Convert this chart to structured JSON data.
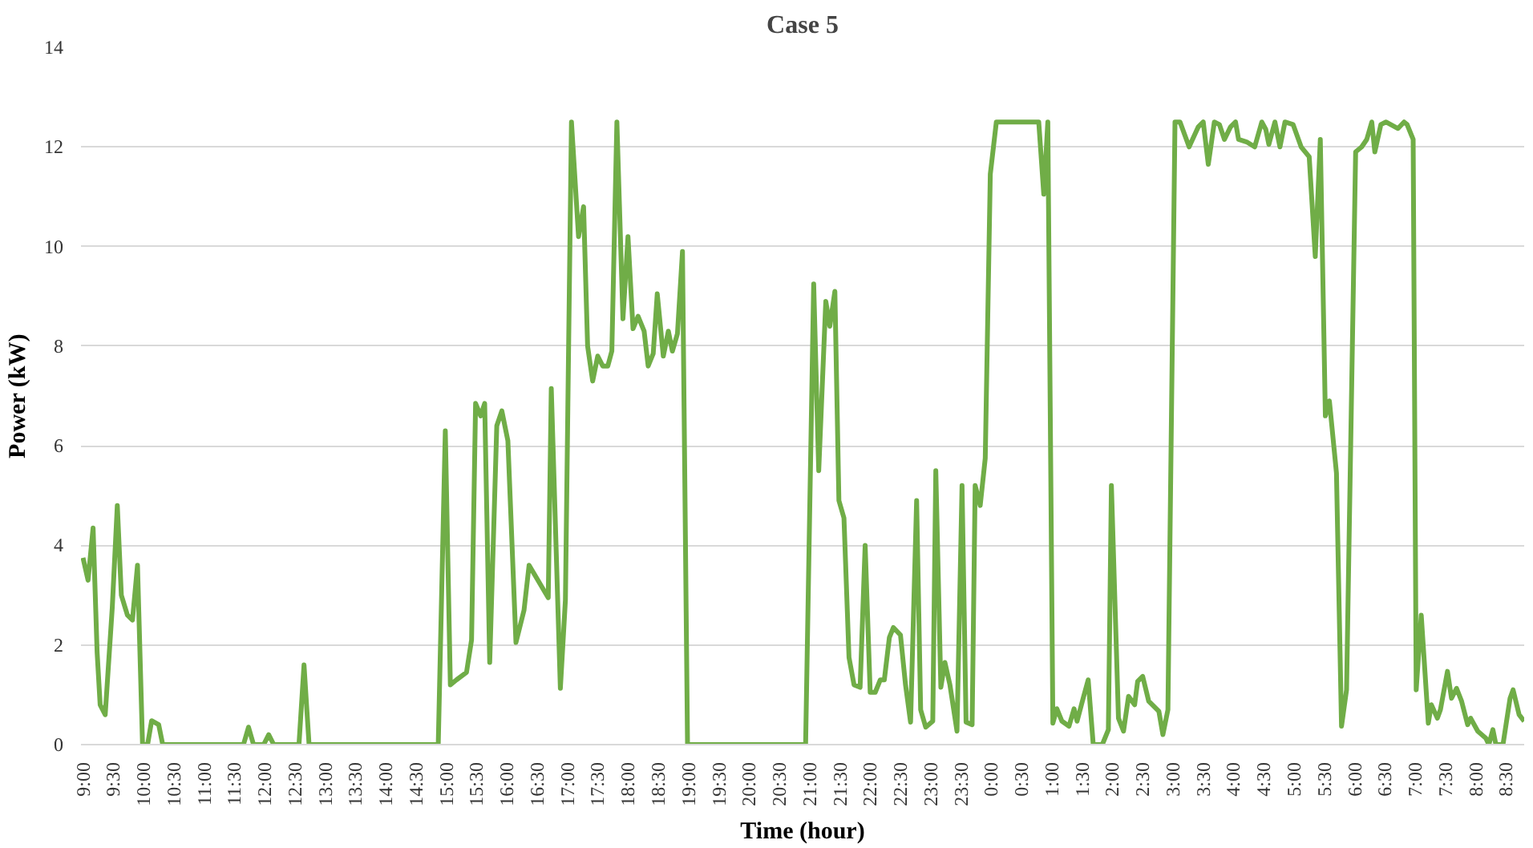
{
  "chart_data": {
    "type": "line",
    "title": "Case 5",
    "xlabel": "Time (hour)",
    "ylabel": "Power (kW)",
    "xlim": [
      "2000-01-01T08:58",
      "2000-01-02T08:48"
    ],
    "ylim": [
      0,
      14
    ],
    "yticks": [
      0,
      2,
      4,
      6,
      8,
      10,
      12,
      14
    ],
    "xticks": [
      {
        "value": "2000-01-01T09:00",
        "label": "9:00"
      },
      {
        "value": "2000-01-01T09:30",
        "label": "9:30"
      },
      {
        "value": "2000-01-01T10:00",
        "label": "10:00"
      },
      {
        "value": "2000-01-01T10:30",
        "label": "10:30"
      },
      {
        "value": "2000-01-01T11:00",
        "label": "11:00"
      },
      {
        "value": "2000-01-01T11:30",
        "label": "11:30"
      },
      {
        "value": "2000-01-01T12:00",
        "label": "12:00"
      },
      {
        "value": "2000-01-01T12:30",
        "label": "12:30"
      },
      {
        "value": "2000-01-01T13:00",
        "label": "13:00"
      },
      {
        "value": "2000-01-01T13:30",
        "label": "13:30"
      },
      {
        "value": "2000-01-01T14:00",
        "label": "14:00"
      },
      {
        "value": "2000-01-01T14:30",
        "label": "14:30"
      },
      {
        "value": "2000-01-01T15:00",
        "label": "15:00"
      },
      {
        "value": "2000-01-01T15:30",
        "label": "15:30"
      },
      {
        "value": "2000-01-01T16:00",
        "label": "16:00"
      },
      {
        "value": "2000-01-01T16:30",
        "label": "16:30"
      },
      {
        "value": "2000-01-01T17:00",
        "label": "17:00"
      },
      {
        "value": "2000-01-01T17:30",
        "label": "17:30"
      },
      {
        "value": "2000-01-01T18:00",
        "label": "18:00"
      },
      {
        "value": "2000-01-01T18:30",
        "label": "18:30"
      },
      {
        "value": "2000-01-01T19:00",
        "label": "19:00"
      },
      {
        "value": "2000-01-01T19:30",
        "label": "19:30"
      },
      {
        "value": "2000-01-01T20:00",
        "label": "20:00"
      },
      {
        "value": "2000-01-01T20:30",
        "label": "20:30"
      },
      {
        "value": "2000-01-01T21:00",
        "label": "21:00"
      },
      {
        "value": "2000-01-01T21:30",
        "label": "21:30"
      },
      {
        "value": "2000-01-01T22:00",
        "label": "22:00"
      },
      {
        "value": "2000-01-01T22:30",
        "label": "22:30"
      },
      {
        "value": "2000-01-01T23:00",
        "label": "23:00"
      },
      {
        "value": "2000-01-01T23:30",
        "label": "23:30"
      },
      {
        "value": "2000-01-02T00:00",
        "label": "0:00"
      },
      {
        "value": "2000-01-02T00:30",
        "label": "0:30"
      },
      {
        "value": "2000-01-02T01:00",
        "label": "1:00"
      },
      {
        "value": "2000-01-02T01:30",
        "label": "1:30"
      },
      {
        "value": "2000-01-02T02:00",
        "label": "2:00"
      },
      {
        "value": "2000-01-02T02:30",
        "label": "2:30"
      },
      {
        "value": "2000-01-02T03:00",
        "label": "3:00"
      },
      {
        "value": "2000-01-02T03:30",
        "label": "3:30"
      },
      {
        "value": "2000-01-02T04:00",
        "label": "4:00"
      },
      {
        "value": "2000-01-02T04:30",
        "label": "4:30"
      },
      {
        "value": "2000-01-02T05:00",
        "label": "5:00"
      },
      {
        "value": "2000-01-02T05:30",
        "label": "5:30"
      },
      {
        "value": "2000-01-02T06:00",
        "label": "6:00"
      },
      {
        "value": "2000-01-02T06:30",
        "label": "6:30"
      },
      {
        "value": "2000-01-02T07:00",
        "label": "7:00"
      },
      {
        "value": "2000-01-02T07:30",
        "label": "7:30"
      },
      {
        "value": "2000-01-02T08:00",
        "label": "8:00"
      },
      {
        "value": "2000-01-02T08:30",
        "label": "8:30"
      }
    ],
    "grid": "y",
    "marker": "none",
    "line_style": "solid",
    "series": [
      {
        "color": "#70ad47",
        "x": [
          "2000-01-01T09:00",
          "2000-01-01T09:05",
          "2000-01-01T09:10",
          "2000-01-01T09:14",
          "2000-01-01T09:17",
          "2000-01-01T09:22",
          "2000-01-01T09:29",
          "2000-01-01T09:34",
          "2000-01-01T09:38",
          "2000-01-01T09:44",
          "2000-01-01T09:49",
          "2000-01-01T09:54",
          "2000-01-01T09:59",
          "2000-01-01T10:04",
          "2000-01-01T10:08",
          "2000-01-01T10:15",
          "2000-01-01T10:19",
          "2000-01-01T11:39",
          "2000-01-01T11:44",
          "2000-01-01T11:49",
          "2000-01-01T11:59",
          "2000-01-01T12:04",
          "2000-01-01T12:09",
          "2000-01-01T12:34",
          "2000-01-01T12:39",
          "2000-01-01T12:44",
          "2000-01-01T14:52",
          "2000-01-01T14:59",
          "2000-01-01T15:04",
          "2000-01-01T15:10",
          "2000-01-01T15:20",
          "2000-01-01T15:25",
          "2000-01-01T15:29",
          "2000-01-01T15:34",
          "2000-01-01T15:38",
          "2000-01-01T15:43",
          "2000-01-01T15:50",
          "2000-01-01T15:55",
          "2000-01-01T16:01",
          "2000-01-01T16:09",
          "2000-01-01T16:17",
          "2000-01-01T16:22",
          "2000-01-01T16:41",
          "2000-01-01T16:44",
          "2000-01-01T16:53",
          "2000-01-01T16:58",
          "2000-01-01T17:04",
          "2000-01-01T17:11",
          "2000-01-01T17:16",
          "2000-01-01T17:20",
          "2000-01-01T17:25",
          "2000-01-01T17:30",
          "2000-01-01T17:35",
          "2000-01-01T17:40",
          "2000-01-01T17:44",
          "2000-01-01T17:49",
          "2000-01-01T17:55",
          "2000-01-01T18:00",
          "2000-01-01T18:05",
          "2000-01-01T18:10",
          "2000-01-01T18:16",
          "2000-01-01T18:20",
          "2000-01-01T18:25",
          "2000-01-01T18:29",
          "2000-01-01T18:35",
          "2000-01-01T18:40",
          "2000-01-01T18:44",
          "2000-01-01T18:49",
          "2000-01-01T18:54",
          "2000-01-01T18:59",
          "2000-01-01T20:56",
          "2000-01-01T21:04",
          "2000-01-01T21:09",
          "2000-01-01T21:16",
          "2000-01-01T21:20",
          "2000-01-01T21:25",
          "2000-01-01T21:29",
          "2000-01-01T21:34",
          "2000-01-01T21:39",
          "2000-01-01T21:44",
          "2000-01-01T21:50",
          "2000-01-01T21:55",
          "2000-01-01T22:00",
          "2000-01-01T22:05",
          "2000-01-01T22:10",
          "2000-01-01T22:14",
          "2000-01-01T22:19",
          "2000-01-01T22:23",
          "2000-01-01T22:30",
          "2000-01-01T22:35",
          "2000-01-01T22:40",
          "2000-01-01T22:46",
          "2000-01-01T22:50",
          "2000-01-01T22:55",
          "2000-01-01T23:02",
          "2000-01-01T23:05",
          "2000-01-01T23:10",
          "2000-01-01T23:14",
          "2000-01-01T23:19",
          "2000-01-01T23:26",
          "2000-01-01T23:31",
          "2000-01-01T23:35",
          "2000-01-01T23:41",
          "2000-01-01T23:44",
          "2000-01-01T23:49",
          "2000-01-01T23:54",
          "2000-01-01T23:59",
          "2000-01-02T00:05",
          "2000-01-02T00:47",
          "2000-01-02T00:52",
          "2000-01-02T00:56",
          "2000-01-02T01:01",
          "2000-01-02T01:05",
          "2000-01-02T01:10",
          "2000-01-02T01:17",
          "2000-01-02T01:22",
          "2000-01-02T01:25",
          "2000-01-02T01:31",
          "2000-01-02T01:36",
          "2000-01-02T01:41",
          "2000-01-02T01:50",
          "2000-01-02T01:56",
          "2000-01-02T01:59",
          "2000-01-02T02:06",
          "2000-01-02T02:11",
          "2000-01-02T02:16",
          "2000-01-02T02:22",
          "2000-01-02T02:25",
          "2000-01-02T02:30",
          "2000-01-02T02:36",
          "2000-01-02T02:41",
          "2000-01-02T02:46",
          "2000-01-02T02:50",
          "2000-01-02T02:55",
          "2000-01-02T03:02",
          "2000-01-02T03:07",
          "2000-01-02T03:16",
          "2000-01-02T03:25",
          "2000-01-02T03:30",
          "2000-01-02T03:35",
          "2000-01-02T03:41",
          "2000-01-02T03:46",
          "2000-01-02T03:51",
          "2000-01-02T03:57",
          "2000-01-02T04:02",
          "2000-01-02T04:05",
          "2000-01-02T04:13",
          "2000-01-02T04:21",
          "2000-01-02T04:28",
          "2000-01-02T04:32",
          "2000-01-02T04:35",
          "2000-01-02T04:41",
          "2000-01-02T04:46",
          "2000-01-02T04:51",
          "2000-01-02T04:59",
          "2000-01-02T05:07",
          "2000-01-02T05:15",
          "2000-01-02T05:21",
          "2000-01-02T05:26",
          "2000-01-02T05:31",
          "2000-01-02T05:35",
          "2000-01-02T05:42",
          "2000-01-02T05:47",
          "2000-01-02T05:52",
          "2000-01-02T06:01",
          "2000-01-02T06:07",
          "2000-01-02T06:12",
          "2000-01-02T06:17",
          "2000-01-02T06:20",
          "2000-01-02T06:26",
          "2000-01-02T06:31",
          "2000-01-02T06:43",
          "2000-01-02T06:49",
          "2000-01-02T06:52",
          "2000-01-02T06:58",
          "2000-01-02T07:01",
          "2000-01-02T07:06",
          "2000-01-02T07:13",
          "2000-01-02T07:16",
          "2000-01-02T07:22",
          "2000-01-02T07:25",
          "2000-01-02T07:32",
          "2000-01-02T07:36",
          "2000-01-02T07:41",
          "2000-01-02T07:46",
          "2000-01-02T07:52",
          "2000-01-02T07:55",
          "2000-01-02T08:02",
          "2000-01-02T08:10",
          "2000-01-02T08:13",
          "2000-01-02T08:17",
          "2000-01-02T08:20",
          "2000-01-02T08:27",
          "2000-01-02T08:34",
          "2000-01-02T08:37",
          "2000-01-02T08:43",
          "2000-01-02T08:48"
        ],
        "values": [
          3.75,
          3.3,
          4.35,
          1.85,
          0.8,
          0.6,
          2.75,
          4.8,
          3.0,
          2.6,
          2.5,
          3.6,
          0,
          0,
          0.48,
          0.4,
          0,
          0,
          0.35,
          0,
          0,
          0.2,
          0,
          0,
          1.6,
          0,
          0,
          6.3,
          1.2,
          1.3,
          1.45,
          2.1,
          6.85,
          6.6,
          6.85,
          1.65,
          6.4,
          6.7,
          6.1,
          2.05,
          2.7,
          3.6,
          2.95,
          7.15,
          1.13,
          2.9,
          12.5,
          10.2,
          10.8,
          8.0,
          7.3,
          7.8,
          7.6,
          7.6,
          7.9,
          12.5,
          8.55,
          10.2,
          8.35,
          8.6,
          8.3,
          7.6,
          7.85,
          9.05,
          7.8,
          8.3,
          7.9,
          8.25,
          9.9,
          0,
          0,
          9.25,
          5.5,
          8.9,
          8.4,
          9.1,
          4.9,
          4.55,
          1.75,
          1.2,
          1.15,
          4.0,
          1.05,
          1.05,
          1.3,
          1.3,
          2.15,
          2.35,
          2.2,
          1.2,
          0.45,
          4.9,
          0.7,
          0.35,
          0.47,
          5.5,
          1.15,
          1.65,
          1.2,
          0.27,
          5.2,
          0.45,
          0.4,
          5.2,
          4.8,
          5.75,
          11.45,
          12.5,
          12.5,
          11.05,
          12.5,
          0.43,
          0.72,
          0.47,
          0.37,
          0.72,
          0.47,
          0.93,
          1.3,
          0,
          0,
          0.3,
          5.2,
          0.53,
          0.27,
          0.97,
          0.8,
          1.27,
          1.37,
          0.87,
          0.77,
          0.67,
          0.2,
          0.7,
          12.5,
          12.5,
          12.0,
          12.4,
          12.5,
          11.65,
          12.5,
          12.45,
          12.15,
          12.4,
          12.5,
          12.15,
          12.1,
          12.0,
          12.5,
          12.35,
          12.05,
          12.5,
          12.0,
          12.5,
          12.45,
          12.0,
          11.8,
          9.8,
          12.15,
          6.6,
          6.9,
          5.45,
          0.37,
          1.1,
          11.9,
          12.0,
          12.15,
          12.5,
          11.9,
          12.45,
          12.5,
          12.37,
          12.5,
          12.45,
          12.15,
          1.1,
          2.6,
          0.43,
          0.8,
          0.53,
          0.7,
          1.47,
          0.93,
          1.13,
          0.87,
          0.4,
          0.53,
          0.27,
          0.13,
          0,
          0.3,
          0,
          0,
          0.93,
          1.1,
          0.6,
          0.47
        ]
      }
    ]
  }
}
